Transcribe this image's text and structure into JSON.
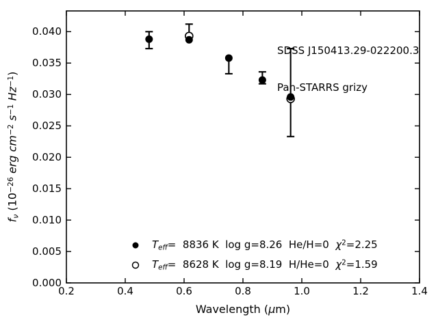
{
  "chart_data": {
    "type": "scatter",
    "title": "",
    "annotation": [
      "SDSS J150413.29-022200.3",
      "Pan-STARRS grizy"
    ],
    "xlabel": "Wavelength (μm)",
    "ylabel": "fν (10−26 erg cm−2 s−1 Hz−1)",
    "xlabel_tokens": [
      {
        "t": "Wavelength (",
        "s": "norm"
      },
      {
        "t": "μ",
        "s": "it"
      },
      {
        "t": "m)",
        "s": "norm"
      }
    ],
    "ylabel_tokens": [
      {
        "t": "f",
        "s": "it"
      },
      {
        "t": "ν",
        "s": "subit"
      },
      {
        "t": " (10",
        "s": "norm"
      },
      {
        "t": "−26",
        "s": "sup"
      },
      {
        "t": " erg ",
        "s": "it"
      },
      {
        "t": "cm",
        "s": "it"
      },
      {
        "t": "−2",
        "s": "sup"
      },
      {
        "t": " ",
        "s": "norm"
      },
      {
        "t": "s",
        "s": "it"
      },
      {
        "t": "−1",
        "s": "sup"
      },
      {
        "t": " ",
        "s": "norm"
      },
      {
        "t": "Hz",
        "s": "it"
      },
      {
        "t": "−1",
        "s": "sup"
      },
      {
        "t": ")",
        "s": "norm"
      }
    ],
    "xlim": [
      0.2,
      1.4
    ],
    "ylim": [
      0,
      0.0433
    ],
    "grid": false,
    "legend_position": "lower center",
    "legend_frame": false,
    "xticks": {
      "values": [
        0.2,
        0.4,
        0.6,
        0.8,
        1.0,
        1.2,
        1.4
      ],
      "labels": [
        "0.2",
        "0.4",
        "0.6",
        "0.8",
        "1.0",
        "1.2",
        "1.4"
      ]
    },
    "yticks": {
      "values": [
        0.0,
        0.005,
        0.01,
        0.015,
        0.02,
        0.025,
        0.03,
        0.035,
        0.04
      ],
      "labels": [
        "0.000",
        "0.005",
        "0.010",
        "0.015",
        "0.020",
        "0.025",
        "0.030",
        "0.035",
        "0.040"
      ]
    },
    "bands": [
      "g",
      "r",
      "i",
      "z",
      "y"
    ],
    "x": [
      0.481,
      0.617,
      0.752,
      0.866,
      0.962
    ],
    "series": [
      {
        "name": "Teff= 8836 K log g=8.26 He/H=0 chi2=2.25",
        "marker": "filled-circle",
        "values": [
          0.0388,
          0.0387,
          0.0358,
          0.0323,
          0.0296
        ]
      },
      {
        "name": "Teff= 8628 K log g=8.19 H/He=0 chi2=1.59",
        "marker": "open-circle",
        "values": [
          null,
          0.0393,
          null,
          null,
          0.0293
        ]
      }
    ],
    "error_bars": [
      {
        "x": 0.481,
        "lo": 0.0373,
        "hi": 0.04,
        "cap_lo": true,
        "cap_hi": true
      },
      {
        "x": 0.617,
        "lo": 0.0387,
        "hi": 0.0412,
        "cap_lo": false,
        "cap_hi": true
      },
      {
        "x": 0.752,
        "lo": 0.0333,
        "hi": 0.0358,
        "cap_lo": true,
        "cap_hi": false
      },
      {
        "x": 0.866,
        "lo": 0.0317,
        "hi": 0.0336,
        "cap_lo": true,
        "cap_hi": true
      },
      {
        "x": 0.962,
        "lo": 0.0233,
        "hi": 0.0373,
        "cap_lo": true,
        "cap_hi": true
      }
    ],
    "legend": [
      {
        "marker": "filled-circle",
        "tokens": [
          {
            "t": "T",
            "s": "it"
          },
          {
            "t": "eff",
            "s": "subit"
          },
          {
            "t": "=  8836 K  log g=8.26  He/H=0  ",
            "s": "norm"
          },
          {
            "t": "χ",
            "s": "it"
          },
          {
            "t": "2",
            "s": "sup"
          },
          {
            "t": "=2.25",
            "s": "norm"
          }
        ]
      },
      {
        "marker": "open-circle",
        "tokens": [
          {
            "t": "T",
            "s": "it"
          },
          {
            "t": "eff",
            "s": "subit"
          },
          {
            "t": "=  8628 K  log g=8.19  H/He=0  ",
            "s": "norm"
          },
          {
            "t": "χ",
            "s": "it"
          },
          {
            "t": "2",
            "s": "sup"
          },
          {
            "t": "=1.59",
            "s": "norm"
          }
        ]
      }
    ],
    "colors": {
      "foreground": "#000000",
      "background": "#ffffff"
    }
  }
}
